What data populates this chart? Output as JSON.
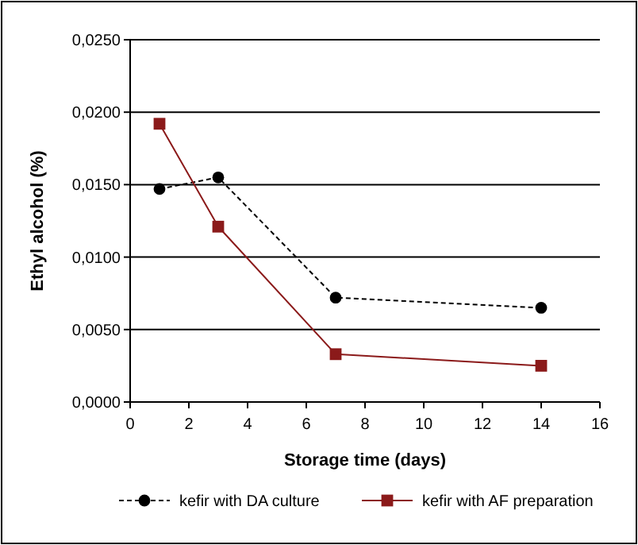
{
  "chart_data": {
    "type": "line",
    "xlabel": "Storage time (days)",
    "ylabel": "Ethyl alcohol (%)",
    "x": [
      1,
      3,
      7,
      14
    ],
    "series": [
      {
        "name": "kefir with DA culture",
        "color": "#000000",
        "values": [
          0.0147,
          0.0155,
          0.0072,
          0.0065
        ],
        "marker": "circle",
        "line_style": "dashed"
      },
      {
        "name": "kefir with AF preparation",
        "color": "#8b1a1a",
        "values": [
          0.0192,
          0.0121,
          0.0033,
          0.0025
        ],
        "marker": "square",
        "line_style": "solid"
      }
    ],
    "xlim": [
      0,
      16
    ],
    "xticks": [
      0,
      2,
      4,
      6,
      8,
      10,
      12,
      14,
      16
    ],
    "ylim": [
      0,
      0.025
    ],
    "yticks": [
      {
        "value": 0,
        "label": "0,0000"
      },
      {
        "value": 0.005,
        "label": "0,0050"
      },
      {
        "value": 0.01,
        "label": "0,0100"
      },
      {
        "value": 0.015,
        "label": "0,0150"
      },
      {
        "value": 0.02,
        "label": "0,0200"
      },
      {
        "value": 0.025,
        "label": "0,0250"
      }
    ],
    "grid": "y",
    "legend": "bottom"
  }
}
